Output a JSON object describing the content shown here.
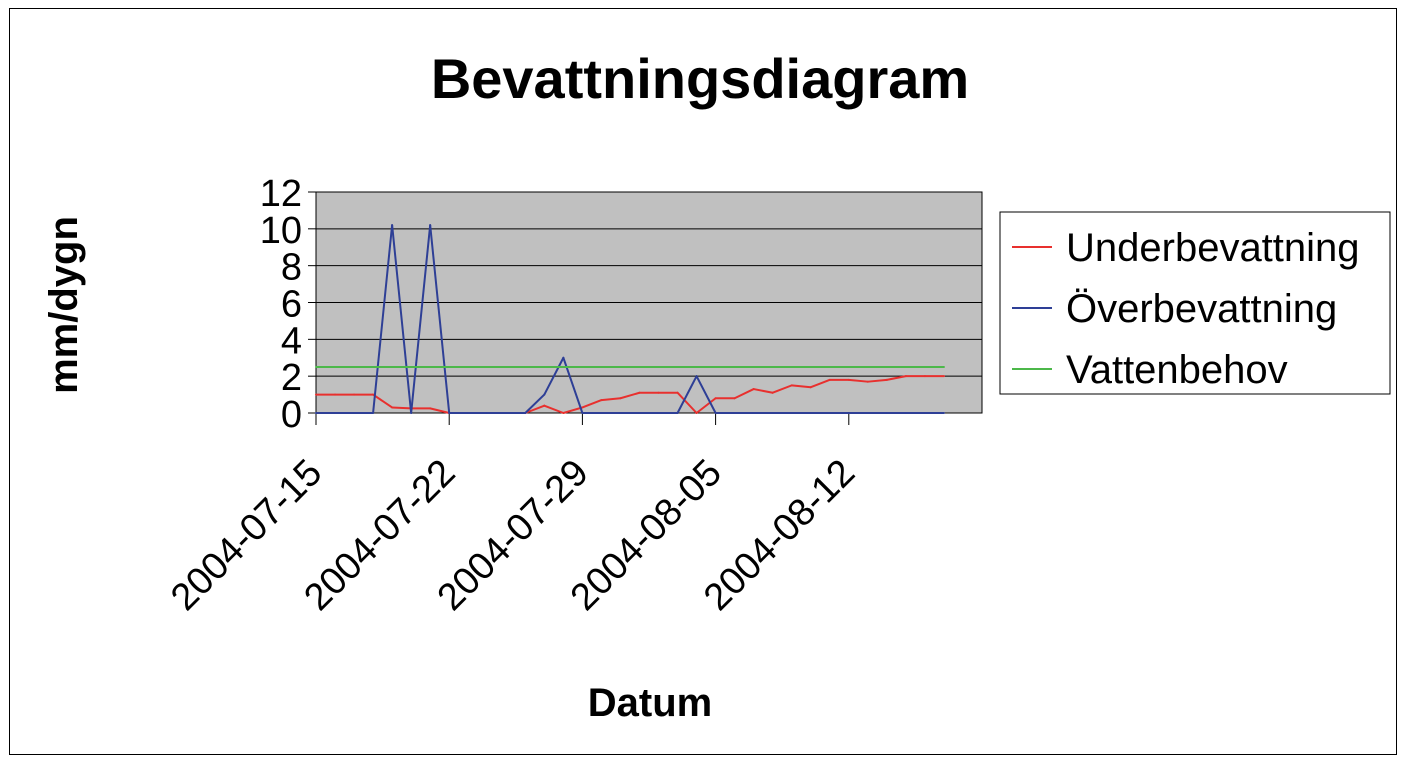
{
  "chart_data": {
    "type": "line",
    "title": "Bevattningsdiagram",
    "xlabel": "Datum",
    "ylabel": "mm/dygn",
    "ylim": [
      0,
      12
    ],
    "yticks": [
      "0",
      "2",
      "4",
      "6",
      "8",
      "10",
      "12"
    ],
    "xlim": [
      "2004-07-15",
      "2004-08-19"
    ],
    "xticks": [
      "2004-07-15",
      "2004-07-22",
      "2004-07-29",
      "2004-08-05",
      "2004-08-12"
    ],
    "grid": "horizontal",
    "legend_position": "right",
    "plot_background": "#c0c0c0",
    "series": [
      {
        "name": "Underbevattning",
        "color": "#e8302e",
        "x": [
          "2004-07-15",
          "2004-07-16",
          "2004-07-17",
          "2004-07-18",
          "2004-07-19",
          "2004-07-20",
          "2004-07-21",
          "2004-07-22",
          "2004-07-23",
          "2004-07-24",
          "2004-07-25",
          "2004-07-26",
          "2004-07-27",
          "2004-07-28",
          "2004-07-29",
          "2004-07-30",
          "2004-07-31",
          "2004-08-01",
          "2004-08-02",
          "2004-08-03",
          "2004-08-04",
          "2004-08-05",
          "2004-08-06",
          "2004-08-07",
          "2004-08-08",
          "2004-08-09",
          "2004-08-10",
          "2004-08-11",
          "2004-08-12",
          "2004-08-13",
          "2004-08-14",
          "2004-08-15",
          "2004-08-16",
          "2004-08-17"
        ],
        "values": [
          1.0,
          1.0,
          1.0,
          1.0,
          0.3,
          0.25,
          0.25,
          0,
          0,
          0,
          0,
          0,
          0.4,
          0,
          0.3,
          0.7,
          0.8,
          1.1,
          1.1,
          1.1,
          0,
          0.8,
          0.8,
          1.3,
          1.1,
          1.5,
          1.4,
          1.8,
          1.8,
          1.7,
          1.8,
          2.0,
          2.0,
          2.0
        ]
      },
      {
        "name": "Överbevattning",
        "color": "#2e3f96",
        "x": [
          "2004-07-15",
          "2004-07-16",
          "2004-07-17",
          "2004-07-18",
          "2004-07-19",
          "2004-07-20",
          "2004-07-21",
          "2004-07-22",
          "2004-07-23",
          "2004-07-24",
          "2004-07-25",
          "2004-07-26",
          "2004-07-27",
          "2004-07-28",
          "2004-07-29",
          "2004-07-30",
          "2004-07-31",
          "2004-08-01",
          "2004-08-02",
          "2004-08-03",
          "2004-08-04",
          "2004-08-05",
          "2004-08-06",
          "2004-08-07",
          "2004-08-08",
          "2004-08-09",
          "2004-08-10",
          "2004-08-11",
          "2004-08-12",
          "2004-08-13",
          "2004-08-14",
          "2004-08-15",
          "2004-08-16",
          "2004-08-17"
        ],
        "values": [
          0,
          0,
          0,
          0,
          10.2,
          0,
          10.2,
          0,
          0,
          0,
          0,
          0,
          1.0,
          3.0,
          0,
          0,
          0,
          0,
          0,
          0,
          2.0,
          0,
          0,
          0,
          0,
          0,
          0,
          0,
          0,
          0,
          0,
          0,
          0,
          0
        ]
      },
      {
        "name": "Vattenbehov",
        "color": "#4cb84a",
        "x": [
          "2004-07-15",
          "2004-08-17"
        ],
        "values": [
          2.5,
          2.5
        ]
      }
    ]
  }
}
